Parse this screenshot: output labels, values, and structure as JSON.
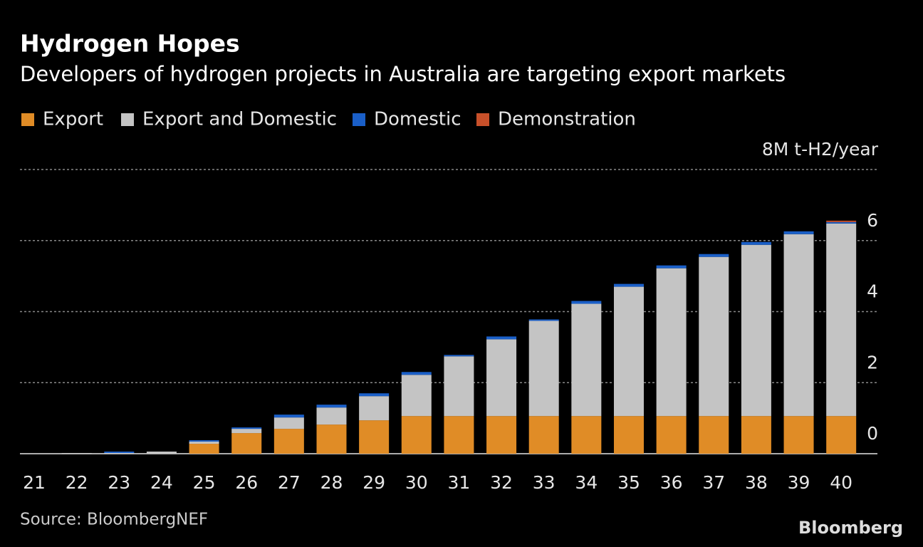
{
  "chart_data": {
    "type": "stacked_bar",
    "title": "Hydrogen Hopes",
    "subtitle": "Developers of hydrogen projects in Australia are targeting export markets",
    "source": "Source: BloombergNEF",
    "brand": "Bloomberg",
    "categories": [
      "21",
      "22",
      "23",
      "24",
      "25",
      "26",
      "27",
      "28",
      "29",
      "30",
      "31",
      "32",
      "33",
      "34",
      "35",
      "36",
      "37",
      "38",
      "39",
      "40"
    ],
    "series": [
      {
        "name": "Export",
        "color": "#e08c26",
        "values": [
          0,
          0,
          0,
          0,
          0.28,
          0.58,
          0.7,
          0.82,
          0.94,
          1.06,
          1.06,
          1.06,
          1.06,
          1.06,
          1.06,
          1.06,
          1.06,
          1.06,
          1.06,
          1.06
        ]
      },
      {
        "name": "Export and Domestic",
        "color": "#c4c4c4",
        "values": [
          0,
          0.02,
          0.02,
          0.06,
          0.06,
          0.12,
          0.32,
          0.48,
          0.68,
          1.16,
          1.68,
          2.16,
          2.68,
          3.16,
          3.64,
          4.16,
          4.48,
          4.82,
          5.12,
          5.42
        ]
      },
      {
        "name": "Domestic",
        "color": "#1a5fc8",
        "values": [
          0,
          0,
          0.04,
          0,
          0.04,
          0.04,
          0.08,
          0.08,
          0.08,
          0.08,
          0.04,
          0.08,
          0.04,
          0.08,
          0.08,
          0.08,
          0.08,
          0.08,
          0.08,
          0.04
        ]
      },
      {
        "name": "Demonstration",
        "color": "#c8502a",
        "values": [
          0,
          0,
          0,
          0,
          0,
          0,
          0,
          0,
          0,
          0,
          0,
          0,
          0,
          0,
          0,
          0,
          0,
          0,
          0,
          0.04
        ]
      }
    ],
    "ylim": [
      0,
      8
    ],
    "yticks": [
      0,
      2,
      4,
      6,
      {
        "value": 8,
        "label": "8M t-H2/year"
      }
    ],
    "grid": true,
    "legend": "top-left"
  }
}
